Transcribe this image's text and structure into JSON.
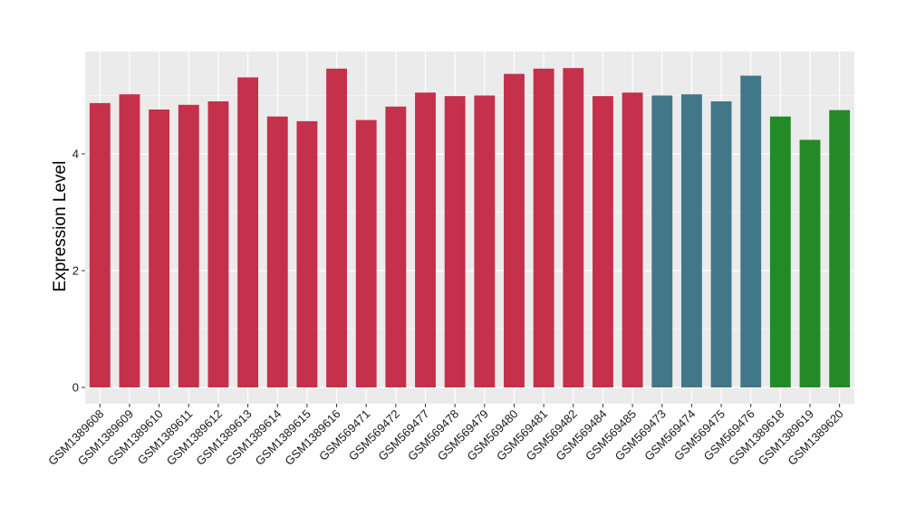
{
  "chart_data": {
    "type": "bar",
    "ylabel": "Expression Level",
    "xlabel": "",
    "ylim": [
      0,
      5.6
    ],
    "y_ticks": [
      0,
      2,
      4
    ],
    "grid": true,
    "legend": "none",
    "categories": [
      "GSM1389608",
      "GSM1389609",
      "GSM1389610",
      "GSM1389611",
      "GSM1389612",
      "GSM1389613",
      "GSM1389614",
      "GSM1389615",
      "GSM1389616",
      "GSM569471",
      "GSM569472",
      "GSM569477",
      "GSM569478",
      "GSM569479",
      "GSM569480",
      "GSM569481",
      "GSM569482",
      "GSM569484",
      "GSM569485",
      "GSM569473",
      "GSM569474",
      "GSM569475",
      "GSM569476",
      "GSM1389618",
      "GSM1389619",
      "GSM1389620"
    ],
    "values": [
      4.87,
      5.02,
      4.76,
      4.84,
      4.9,
      5.31,
      4.64,
      4.56,
      5.46,
      4.58,
      4.81,
      5.05,
      4.99,
      5.0,
      5.37,
      5.46,
      5.47,
      4.99,
      5.05,
      5.0,
      5.02,
      4.9,
      5.34,
      4.64,
      4.24,
      4.75
    ],
    "bar_colors": [
      "#C5304A",
      "#C5304A",
      "#C5304A",
      "#C5304A",
      "#C5304A",
      "#C5304A",
      "#C5304A",
      "#C5304A",
      "#C5304A",
      "#C5304A",
      "#C5304A",
      "#C5304A",
      "#C5304A",
      "#C5304A",
      "#C5304A",
      "#C5304A",
      "#C5304A",
      "#C5304A",
      "#C5304A",
      "#427789",
      "#427789",
      "#427789",
      "#427789",
      "#238A27",
      "#238A27",
      "#238A27"
    ],
    "panel_background": "#EBEBEB",
    "grid_color": "#FFFFFF"
  }
}
